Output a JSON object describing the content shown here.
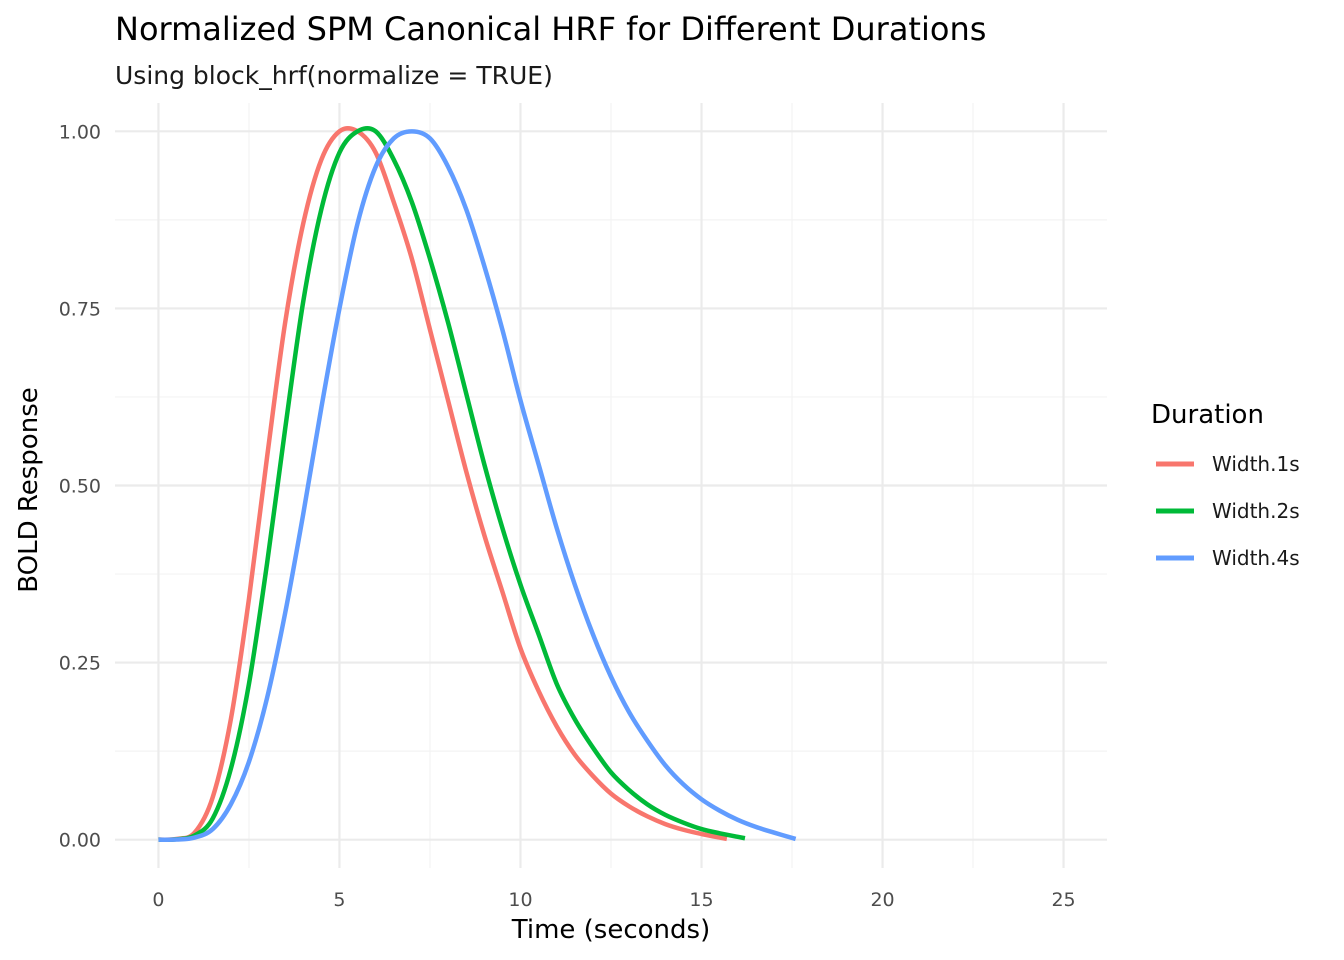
{
  "chart_data": {
    "type": "line",
    "title": "Normalized SPM Canonical HRF for Different Durations",
    "subtitle": "Using block_hrf(normalize = TRUE)",
    "xlabel": "Time (seconds)",
    "ylabel": "BOLD Response",
    "xlim": [
      -1.2,
      26.2
    ],
    "ylim": [
      -0.04,
      1.04
    ],
    "x_ticks": [
      0,
      5,
      10,
      15,
      20,
      25
    ],
    "x_tick_labels": [
      "0",
      "5",
      "10",
      "15",
      "20",
      "25"
    ],
    "y_ticks": [
      0,
      0.25,
      0.5,
      0.75,
      1.0
    ],
    "y_tick_labels": [
      "0.00",
      "0.25",
      "0.50",
      "0.75",
      "1.00"
    ],
    "grid": true,
    "legend": {
      "title": "Duration",
      "position": "right"
    },
    "series": [
      {
        "name": "Width.1s",
        "color": "#F8766D",
        "x": [
          0,
          0.5,
          1,
          1.5,
          2,
          2.5,
          3,
          3.5,
          4,
          4.5,
          5,
          5.5,
          6,
          6.5,
          7,
          7.5,
          8,
          8.5,
          9,
          9.5,
          10,
          10.5,
          11,
          11.5,
          12,
          12.5,
          13,
          13.5,
          14,
          14.5,
          15,
          15.5,
          15.7
        ],
        "y": [
          0,
          0.001,
          0.01,
          0.06,
          0.17,
          0.34,
          0.54,
          0.73,
          0.87,
          0.96,
          1.0,
          1.0,
          0.97,
          0.9,
          0.82,
          0.72,
          0.62,
          0.52,
          0.43,
          0.35,
          0.27,
          0.21,
          0.16,
          0.12,
          0.09,
          0.065,
          0.047,
          0.033,
          0.022,
          0.014,
          0.008,
          0.003,
          0.001
        ]
      },
      {
        "name": "Width.2s",
        "color": "#00BA38",
        "x": [
          0,
          0.5,
          1,
          1.5,
          2,
          2.5,
          3,
          3.5,
          4,
          4.5,
          5,
          5.5,
          6,
          6.5,
          7,
          7.5,
          8,
          8.5,
          9,
          9.5,
          10,
          10.5,
          11,
          11.5,
          12,
          12.5,
          13,
          13.5,
          14,
          14.5,
          15,
          15.5,
          16,
          16.2
        ],
        "y": [
          0,
          0.0005,
          0.006,
          0.03,
          0.1,
          0.22,
          0.39,
          0.58,
          0.76,
          0.89,
          0.97,
          1.0,
          1.0,
          0.96,
          0.9,
          0.82,
          0.73,
          0.63,
          0.53,
          0.44,
          0.36,
          0.29,
          0.22,
          0.17,
          0.13,
          0.095,
          0.07,
          0.05,
          0.035,
          0.024,
          0.015,
          0.009,
          0.004,
          0.002
        ]
      },
      {
        "name": "Width.4s",
        "color": "#619CFF",
        "x": [
          0,
          0.5,
          1,
          1.5,
          2,
          2.5,
          3,
          3.5,
          4,
          4.5,
          5,
          5.5,
          6,
          6.5,
          7,
          7.5,
          8,
          8.5,
          9,
          9.5,
          10,
          10.5,
          11,
          11.5,
          12,
          12.5,
          13,
          13.5,
          14,
          14.5,
          15,
          15.5,
          16,
          16.5,
          17,
          17.6
        ],
        "y": [
          0,
          0.0002,
          0.003,
          0.015,
          0.05,
          0.11,
          0.2,
          0.32,
          0.46,
          0.61,
          0.75,
          0.87,
          0.95,
          0.99,
          1.0,
          0.99,
          0.95,
          0.89,
          0.81,
          0.72,
          0.62,
          0.53,
          0.44,
          0.36,
          0.29,
          0.23,
          0.18,
          0.14,
          0.105,
          0.078,
          0.057,
          0.041,
          0.028,
          0.018,
          0.01,
          0.001
        ]
      }
    ]
  }
}
